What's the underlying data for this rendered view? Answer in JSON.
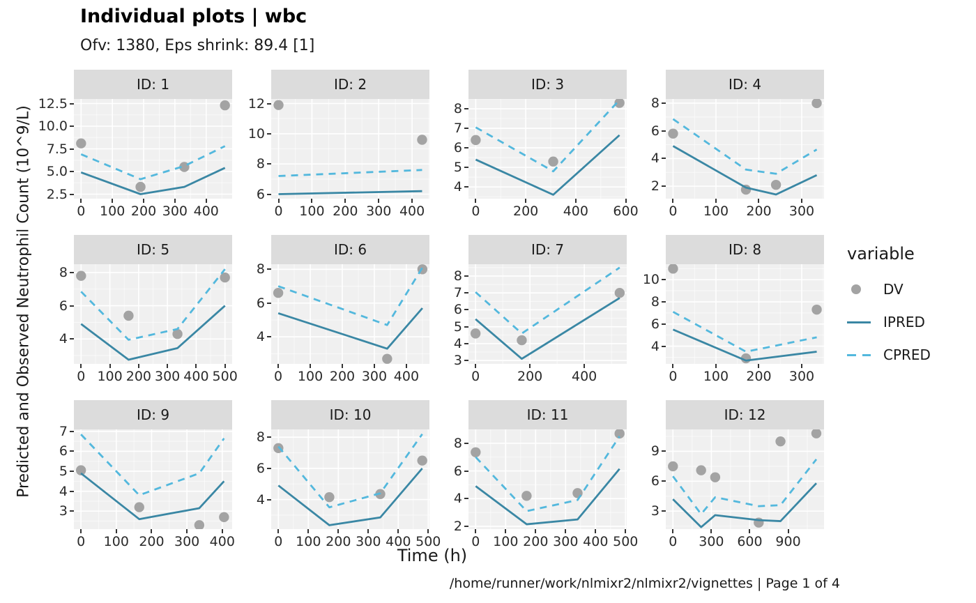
{
  "header": {
    "title": "Individual plots | wbc",
    "subtitle": "Ofv: 1380, Eps shrink: 89.4 [1]"
  },
  "axes": {
    "x_label": "Time (h)",
    "y_label": "Predicted and Observed Neutrophil Count (10^9/L)"
  },
  "caption": "/home/runner/work/nlmixr2/nlmixr2/vignettes | Page 1 of 4",
  "legend": {
    "title": "variable",
    "items": [
      {
        "label": "DV",
        "type": "point"
      },
      {
        "label": "IPRED",
        "type": "solid-line"
      },
      {
        "label": "CPRED",
        "type": "dashed-line"
      }
    ]
  },
  "colors": {
    "dv": "#a3a3a3",
    "ipred": "#3a87a4",
    "cpred": "#53b8dd",
    "panel_bg": "#f0f0f0",
    "strip_bg": "#dcdcdc",
    "grid_major": "#ffffff",
    "grid_minor": "rgba(255,255,255,0.6)"
  },
  "chart_data": {
    "type": "line",
    "grid": true,
    "legend_position": "right",
    "facets": [
      {
        "strip": "ID: 1",
        "xlim": [
          -23,
          483
        ],
        "ylim": [
          2.0,
          13.0
        ],
        "x_ticks": [
          0,
          100,
          200,
          300,
          400
        ],
        "y_tick_labels": [
          "2.5",
          "5.0",
          "7.5",
          "10.0",
          "12.5"
        ],
        "y_tick_values": [
          2.5,
          5.0,
          7.5,
          10.0,
          12.5
        ],
        "series": {
          "DV": [
            [
              0,
              8.1
            ],
            [
              190,
              3.3
            ],
            [
              330,
              5.5
            ],
            [
              460,
              12.3
            ]
          ],
          "IPRED": [
            [
              0,
              4.9
            ],
            [
              190,
              2.5
            ],
            [
              330,
              3.3
            ],
            [
              460,
              5.4
            ]
          ],
          "CPRED": [
            [
              0,
              6.9
            ],
            [
              190,
              4.15
            ],
            [
              330,
              5.6
            ],
            [
              460,
              7.8
            ]
          ]
        }
      },
      {
        "strip": "ID: 2",
        "xlim": [
          -22,
          452
        ],
        "ylim": [
          5.7,
          12.3
        ],
        "x_ticks": [
          0,
          100,
          200,
          300,
          400
        ],
        "y_tick_labels": [
          "6",
          "8",
          "10",
          "12"
        ],
        "y_tick_values": [
          6,
          8,
          10,
          12
        ],
        "series": {
          "DV": [
            [
              0,
              11.9
            ],
            [
              430,
              9.6
            ]
          ],
          "IPRED": [
            [
              0,
              6.0
            ],
            [
              430,
              6.2
            ]
          ],
          "CPRED": [
            [
              0,
              7.2
            ],
            [
              430,
              7.6
            ]
          ]
        }
      },
      {
        "strip": "ID: 3",
        "xlim": [
          -29,
          604
        ],
        "ylim": [
          3.4,
          8.5
        ],
        "x_ticks": [
          0,
          200,
          400,
          600
        ],
        "y_tick_labels": [
          "4",
          "5",
          "6",
          "7",
          "8"
        ],
        "y_tick_values": [
          4,
          5,
          6,
          7,
          8
        ],
        "series": {
          "DV": [
            [
              0,
              6.4
            ],
            [
              310,
              5.3
            ],
            [
              575,
              8.3
            ]
          ],
          "IPRED": [
            [
              0,
              5.4
            ],
            [
              310,
              3.6
            ],
            [
              575,
              6.65
            ]
          ],
          "CPRED": [
            [
              0,
              7.05
            ],
            [
              310,
              4.8
            ],
            [
              575,
              8.45
            ]
          ]
        }
      },
      {
        "strip": "ID: 4",
        "xlim": [
          -17,
          352
        ],
        "ylim": [
          1.1,
          8.3
        ],
        "x_ticks": [
          0,
          100,
          200,
          300
        ],
        "y_tick_labels": [
          "2",
          "4",
          "6",
          "8"
        ],
        "y_tick_values": [
          2,
          4,
          6,
          8
        ],
        "series": {
          "DV": [
            [
              0,
              5.8
            ],
            [
              170,
              1.75
            ],
            [
              240,
              2.1
            ],
            [
              335,
              8.0
            ]
          ],
          "IPRED": [
            [
              0,
              4.9
            ],
            [
              170,
              1.9
            ],
            [
              240,
              1.4
            ],
            [
              335,
              2.8
            ]
          ],
          "CPRED": [
            [
              0,
              6.85
            ],
            [
              170,
              3.2
            ],
            [
              240,
              2.9
            ],
            [
              335,
              4.65
            ]
          ]
        }
      },
      {
        "strip": "ID: 5",
        "xlim": [
          -25,
          525
        ],
        "ylim": [
          2.5,
          8.5
        ],
        "x_ticks": [
          0,
          100,
          200,
          300,
          400,
          500
        ],
        "y_tick_labels": [
          "4",
          "6",
          "8"
        ],
        "y_tick_values": [
          4,
          6,
          8
        ],
        "series": {
          "DV": [
            [
              0,
              7.8
            ],
            [
              165,
              5.4
            ],
            [
              335,
              4.3
            ],
            [
              500,
              7.7
            ]
          ],
          "IPRED": [
            [
              0,
              4.9
            ],
            [
              165,
              2.75
            ],
            [
              335,
              3.45
            ],
            [
              500,
              6.0
            ]
          ],
          "CPRED": [
            [
              0,
              6.85
            ],
            [
              165,
              3.95
            ],
            [
              335,
              4.6
            ],
            [
              500,
              8.2
            ]
          ]
        }
      },
      {
        "strip": "ID: 6",
        "xlim": [
          -22,
          472
        ],
        "ylim": [
          2.4,
          8.3
        ],
        "x_ticks": [
          0,
          100,
          200,
          300,
          400
        ],
        "y_tick_labels": [
          "4",
          "6",
          "8"
        ],
        "y_tick_values": [
          4,
          6,
          8
        ],
        "series": {
          "DV": [
            [
              0,
              6.6
            ],
            [
              340,
              2.7
            ],
            [
              450,
              8.0
            ]
          ],
          "IPRED": [
            [
              0,
              5.4
            ],
            [
              340,
              3.3
            ],
            [
              450,
              5.7
            ]
          ],
          "CPRED": [
            [
              0,
              7.0
            ],
            [
              340,
              4.7
            ],
            [
              450,
              8.1
            ]
          ]
        }
      },
      {
        "strip": "ID: 7",
        "xlim": [
          -26,
          556
        ],
        "ylim": [
          2.8,
          8.7
        ],
        "x_ticks": [
          0,
          200,
          400
        ],
        "y_tick_labels": [
          "3",
          "4",
          "5",
          "6",
          "7",
          "8"
        ],
        "y_tick_values": [
          3,
          4,
          5,
          6,
          7,
          8
        ],
        "series": {
          "DV": [
            [
              0,
              4.6
            ],
            [
              170,
              4.2
            ],
            [
              530,
              7.0
            ]
          ],
          "IPRED": [
            [
              0,
              5.45
            ],
            [
              170,
              3.1
            ],
            [
              530,
              6.7
            ]
          ],
          "CPRED": [
            [
              0,
              7.05
            ],
            [
              170,
              4.6
            ],
            [
              530,
              8.5
            ]
          ]
        }
      },
      {
        "strip": "ID: 8",
        "xlim": [
          -17,
          352
        ],
        "ylim": [
          2.4,
          11.4
        ],
        "x_ticks": [
          0,
          100,
          200,
          300
        ],
        "y_tick_labels": [
          "4",
          "6",
          "8",
          "10"
        ],
        "y_tick_values": [
          4,
          6,
          8,
          10
        ],
        "series": {
          "DV": [
            [
              0,
              11.0
            ],
            [
              170,
              2.9
            ],
            [
              335,
              7.3
            ]
          ],
          "IPRED": [
            [
              0,
              5.5
            ],
            [
              170,
              2.7
            ],
            [
              335,
              3.5
            ]
          ],
          "CPRED": [
            [
              0,
              7.1
            ],
            [
              170,
              3.5
            ],
            [
              335,
              4.8
            ]
          ]
        }
      },
      {
        "strip": "ID: 9",
        "xlim": [
          -20,
          428
        ],
        "ylim": [
          2.1,
          7.1
        ],
        "x_ticks": [
          0,
          100,
          200,
          300,
          400
        ],
        "y_tick_labels": [
          "3",
          "4",
          "5",
          "6",
          "7"
        ],
        "y_tick_values": [
          3,
          4,
          5,
          6,
          7
        ],
        "series": {
          "DV": [
            [
              0,
              5.05
            ],
            [
              165,
              3.2
            ],
            [
              335,
              2.3
            ],
            [
              405,
              2.7
            ]
          ],
          "IPRED": [
            [
              0,
              4.9
            ],
            [
              165,
              2.6
            ],
            [
              335,
              3.15
            ],
            [
              405,
              4.5
            ]
          ],
          "CPRED": [
            [
              0,
              6.85
            ],
            [
              165,
              3.8
            ],
            [
              335,
              4.9
            ],
            [
              405,
              6.65
            ]
          ]
        }
      },
      {
        "strip": "ID: 10",
        "xlim": [
          -24,
          504
        ],
        "ylim": [
          2.1,
          8.5
        ],
        "x_ticks": [
          0,
          100,
          200,
          300,
          400,
          500
        ],
        "y_tick_labels": [
          "4",
          "6",
          "8"
        ],
        "y_tick_values": [
          4,
          6,
          8
        ],
        "series": {
          "DV": [
            [
              0,
              7.3
            ],
            [
              170,
              4.15
            ],
            [
              340,
              4.35
            ],
            [
              480,
              6.5
            ]
          ],
          "IPRED": [
            [
              0,
              4.9
            ],
            [
              170,
              2.35
            ],
            [
              340,
              2.85
            ],
            [
              480,
              6.0
            ]
          ],
          "CPRED": [
            [
              0,
              7.4
            ],
            [
              170,
              3.5
            ],
            [
              340,
              4.4
            ],
            [
              480,
              8.2
            ]
          ]
        }
      },
      {
        "strip": "ID: 11",
        "xlim": [
          -24,
          504
        ],
        "ylim": [
          1.8,
          9.0
        ],
        "x_ticks": [
          0,
          100,
          200,
          300,
          400,
          500
        ],
        "y_tick_labels": [
          "2",
          "4",
          "6",
          "8"
        ],
        "y_tick_values": [
          2,
          4,
          6,
          8
        ],
        "series": {
          "DV": [
            [
              0,
              7.35
            ],
            [
              170,
              4.2
            ],
            [
              340,
              4.4
            ],
            [
              480,
              8.7
            ]
          ],
          "IPRED": [
            [
              0,
              4.9
            ],
            [
              170,
              2.15
            ],
            [
              340,
              2.5
            ],
            [
              480,
              6.15
            ]
          ],
          "CPRED": [
            [
              0,
              7.0
            ],
            [
              170,
              3.1
            ],
            [
              340,
              3.9
            ],
            [
              480,
              8.5
            ]
          ]
        }
      },
      {
        "strip": "ID: 12",
        "xlim": [
          -56,
          1180
        ],
        "ylim": [
          1.2,
          11.2
        ],
        "x_ticks": [
          0,
          300,
          600,
          900
        ],
        "y_tick_labels": [
          "3",
          "6",
          "9"
        ],
        "y_tick_values": [
          3,
          6,
          9
        ],
        "series": {
          "DV": [
            [
              0,
              7.5
            ],
            [
              220,
              7.1
            ],
            [
              330,
              6.4
            ],
            [
              670,
              1.85
            ],
            [
              840,
              10.0
            ],
            [
              1120,
              10.8
            ]
          ],
          "IPRED": [
            [
              0,
              4.2
            ],
            [
              220,
              1.4
            ],
            [
              330,
              2.6
            ],
            [
              670,
              2.1
            ],
            [
              840,
              2.0
            ],
            [
              1120,
              5.8
            ]
          ],
          "CPRED": [
            [
              0,
              6.5
            ],
            [
              220,
              2.7
            ],
            [
              330,
              4.4
            ],
            [
              670,
              3.5
            ],
            [
              840,
              3.6
            ],
            [
              1120,
              8.2
            ]
          ]
        }
      }
    ]
  }
}
